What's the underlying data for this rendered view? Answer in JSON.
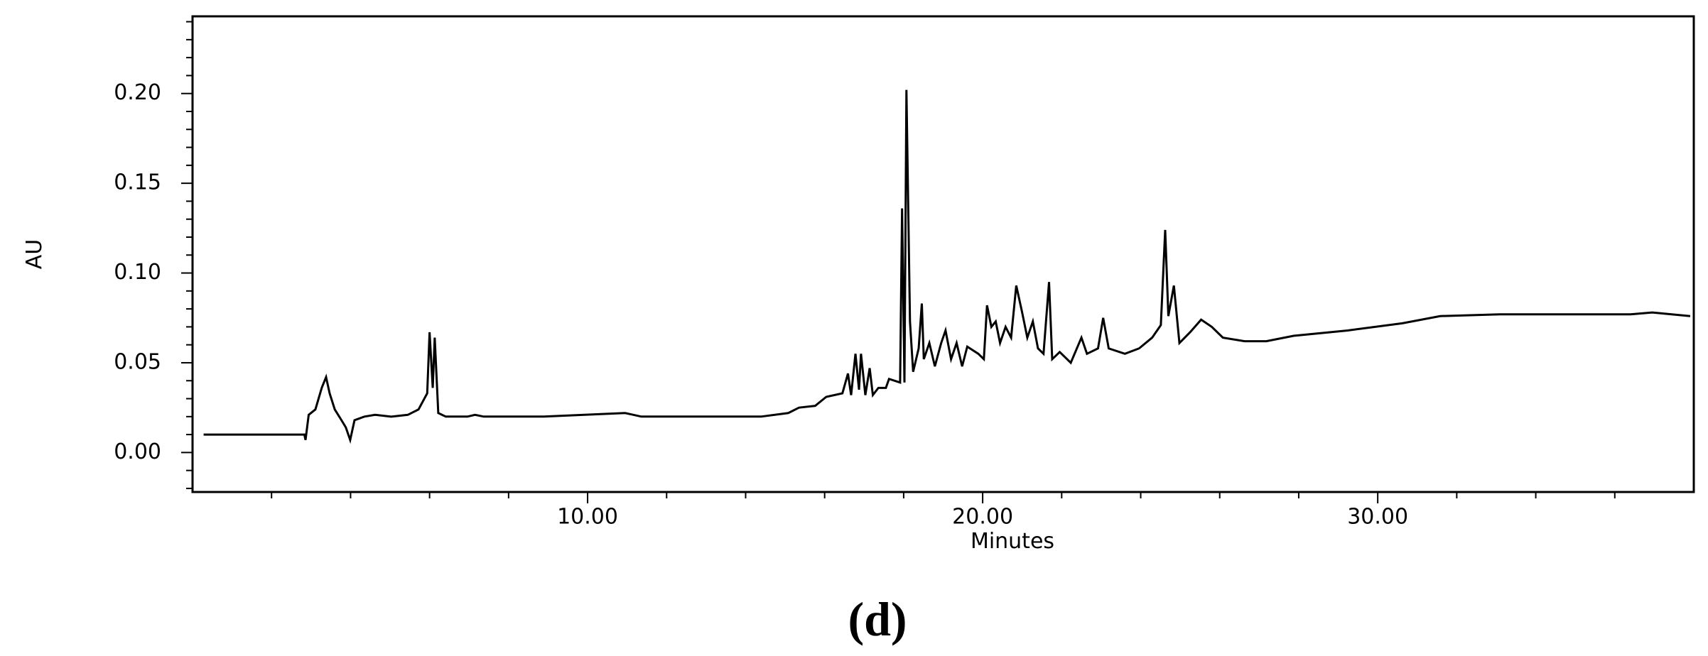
{
  "chart_data": {
    "type": "line",
    "xlabel": "Minutes",
    "ylabel": "AU",
    "caption": "(d)",
    "xlim": [
      0,
      38
    ],
    "ylim": [
      -0.022,
      0.243
    ],
    "xticks": [
      {
        "value": 10,
        "label": "10.00"
      },
      {
        "value": 20,
        "label": "20.00"
      },
      {
        "value": 30,
        "label": "30.00"
      }
    ],
    "yticks": [
      {
        "value": 0,
        "label": "0.00"
      },
      {
        "value": 0.05,
        "label": "0.05"
      },
      {
        "value": 0.1,
        "label": "0.10"
      },
      {
        "value": 0.15,
        "label": "0.15"
      },
      {
        "value": 0.2,
        "label": "0.20"
      }
    ],
    "xminorticks": [
      2,
      4,
      6,
      8,
      12,
      14,
      16,
      18,
      22,
      24,
      26,
      28,
      32,
      34,
      36
    ],
    "yminorticks": [
      -0.02,
      -0.01,
      0.01,
      0.02,
      0.03,
      0.04,
      0.06,
      0.07,
      0.08,
      0.09,
      0.11,
      0.12,
      0.13,
      0.14,
      0.16,
      0.17,
      0.18,
      0.19,
      0.21,
      0.22,
      0.23,
      0.24
    ],
    "grid": false,
    "x": [
      0.28,
      2.83,
      2.86,
      2.94,
      3.11,
      3.27,
      3.38,
      3.47,
      3.6,
      3.77,
      3.88,
      3.99,
      4.1,
      4.35,
      4.62,
      5.03,
      5.45,
      5.72,
      5.94,
      6.0,
      6.08,
      6.13,
      6.22,
      6.41,
      6.96,
      7.15,
      7.37,
      8.89,
      10.95,
      11.36,
      14.39,
      15.08,
      15.35,
      15.76,
      16.04,
      16.45,
      16.59,
      16.67,
      16.78,
      16.87,
      16.92,
      17.03,
      17.14,
      17.22,
      17.36,
      17.55,
      17.63,
      17.91,
      17.96,
      18.02,
      18.07,
      18.16,
      18.24,
      18.38,
      18.46,
      18.51,
      18.65,
      18.79,
      18.95,
      19.06,
      19.2,
      19.34,
      19.48,
      19.61,
      19.89,
      20.03,
      20.11,
      20.22,
      20.33,
      20.44,
      20.58,
      20.72,
      20.85,
      20.99,
      21.13,
      21.27,
      21.4,
      21.54,
      21.68,
      21.76,
      21.95,
      22.23,
      22.5,
      22.64,
      22.92,
      23.05,
      23.19,
      23.6,
      23.96,
      24.29,
      24.51,
      24.62,
      24.7,
      24.84,
      24.98,
      25.25,
      25.53,
      25.8,
      26.08,
      26.63,
      27.18,
      27.87,
      29.24,
      30.62,
      31.58,
      33.09,
      36.4,
      36.95,
      37.91
    ],
    "series": [
      {
        "color": "#000000",
        "values": [
          0.01,
          0.01,
          0.007,
          0.021,
          0.024,
          0.036,
          0.042,
          0.033,
          0.024,
          0.018,
          0.014,
          0.007,
          0.018,
          0.02,
          0.021,
          0.02,
          0.021,
          0.024,
          0.033,
          0.067,
          0.036,
          0.064,
          0.022,
          0.02,
          0.02,
          0.021,
          0.02,
          0.02,
          0.022,
          0.02,
          0.02,
          0.022,
          0.025,
          0.026,
          0.031,
          0.033,
          0.044,
          0.032,
          0.055,
          0.035,
          0.055,
          0.032,
          0.047,
          0.032,
          0.036,
          0.036,
          0.041,
          0.039,
          0.136,
          0.039,
          0.202,
          0.073,
          0.045,
          0.058,
          0.083,
          0.052,
          0.061,
          0.048,
          0.061,
          0.068,
          0.052,
          0.061,
          0.048,
          0.059,
          0.055,
          0.052,
          0.082,
          0.07,
          0.073,
          0.061,
          0.07,
          0.064,
          0.093,
          0.079,
          0.064,
          0.073,
          0.058,
          0.055,
          0.095,
          0.052,
          0.056,
          0.05,
          0.064,
          0.055,
          0.058,
          0.075,
          0.058,
          0.055,
          0.058,
          0.064,
          0.071,
          0.124,
          0.076,
          0.093,
          0.061,
          0.067,
          0.074,
          0.07,
          0.064,
          0.062,
          0.062,
          0.065,
          0.068,
          0.072,
          0.076,
          0.077,
          0.077,
          0.078,
          0.076
        ]
      }
    ]
  }
}
